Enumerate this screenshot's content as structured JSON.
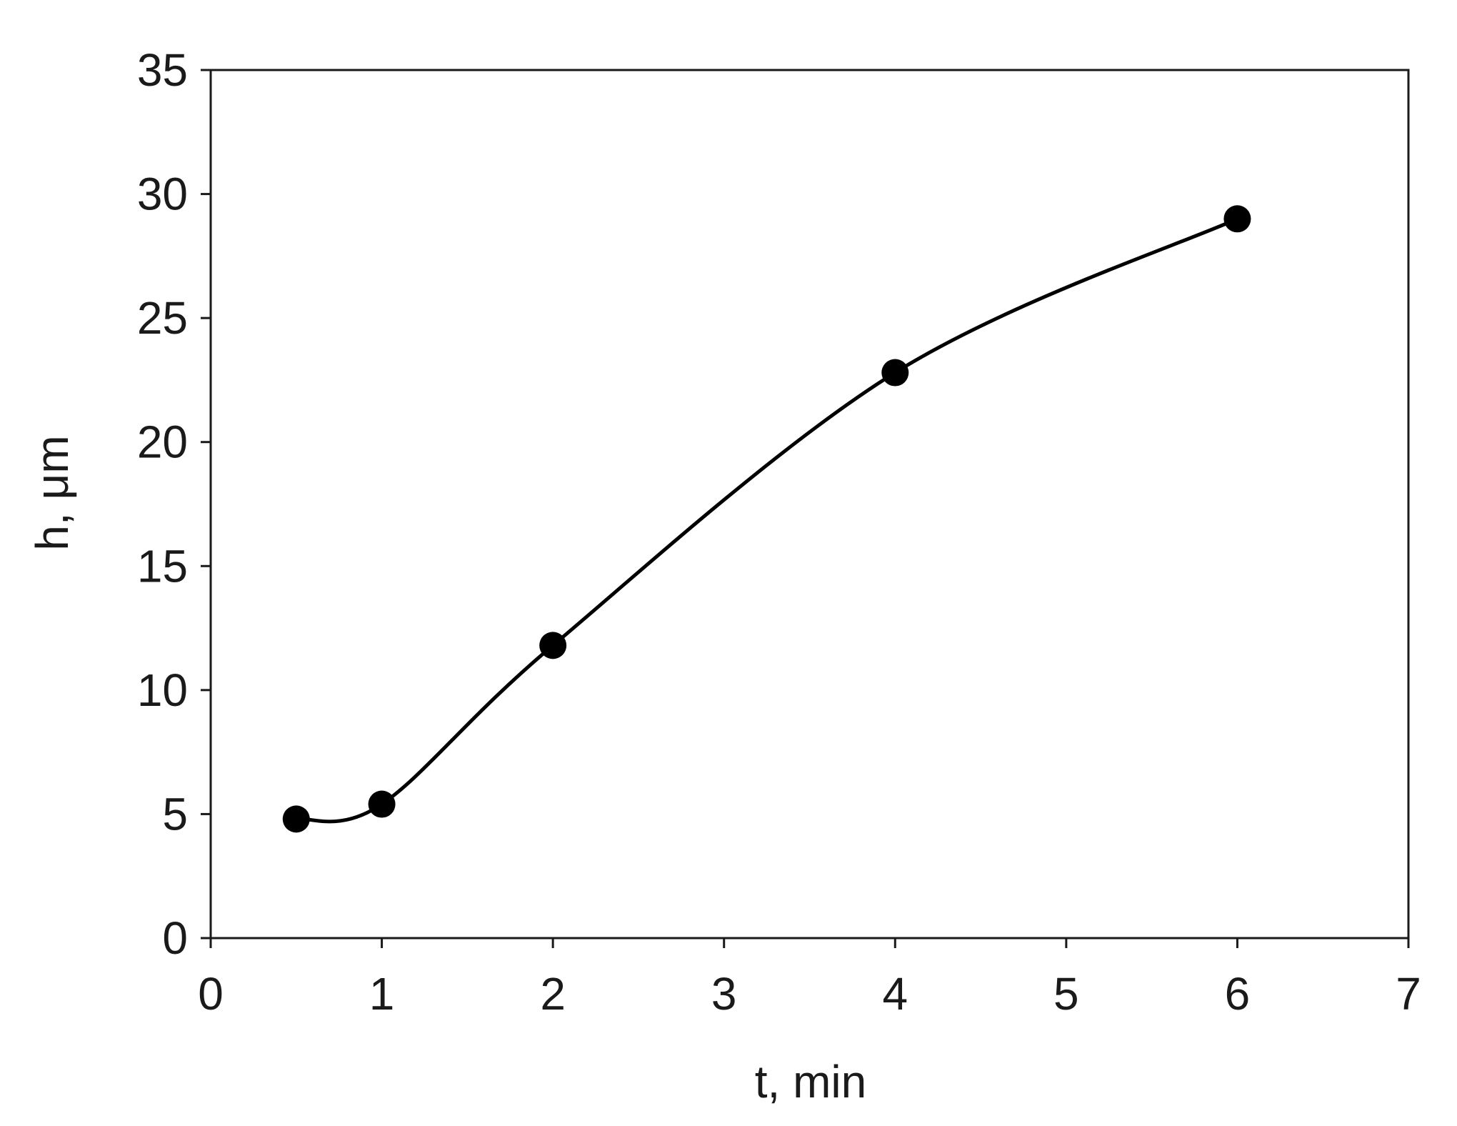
{
  "chart_data": {
    "type": "line",
    "title": "",
    "xlabel": "t, min",
    "ylabel": "h, μm",
    "xlim": [
      0,
      7
    ],
    "ylim": [
      0,
      35
    ],
    "x_ticks": [
      0,
      1,
      2,
      3,
      4,
      5,
      6,
      7
    ],
    "y_ticks": [
      0,
      5,
      10,
      15,
      20,
      25,
      30,
      35
    ],
    "grid": false,
    "smooth": true,
    "series": [
      {
        "marker": "circle",
        "color": "#000000",
        "x": [
          0.5,
          1,
          2,
          4,
          6
        ],
        "y": [
          4.8,
          5.4,
          11.8,
          22.8,
          29.0
        ]
      }
    ]
  }
}
